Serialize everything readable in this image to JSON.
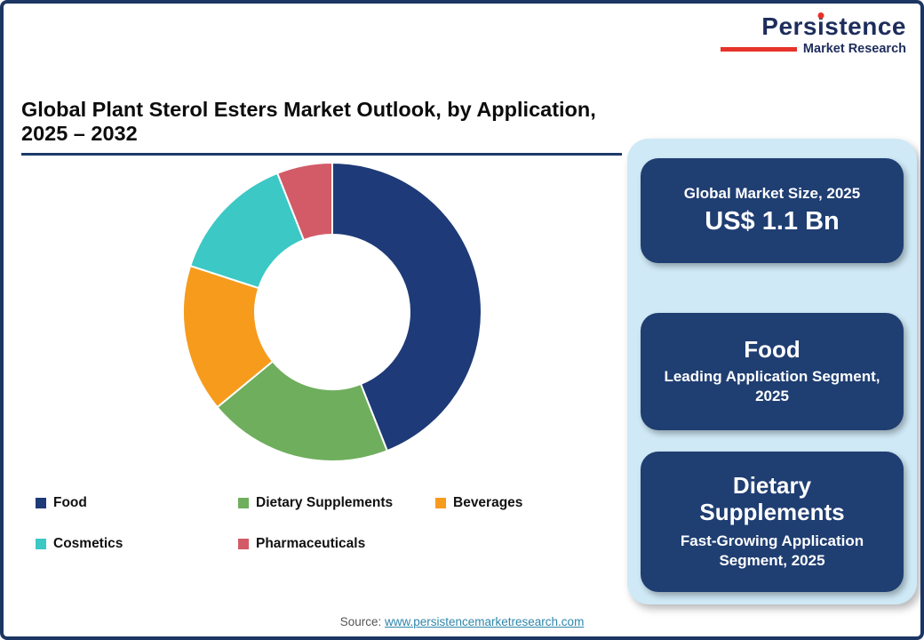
{
  "logo": {
    "part_pre": "Pers",
    "part_i": "i",
    "part_post": "stence",
    "subtitle": "Market Research",
    "brand_navy": "#1e2d5c",
    "brand_red": "#e63229"
  },
  "header": {
    "title": "Global Plant Sterol Esters Market Outlook, by Application, 2025 – 2032",
    "underline_color": "#1d3a6b"
  },
  "chart_data": {
    "type": "pie",
    "donut": true,
    "start_angle_deg": 0,
    "title": "Global Plant Sterol Esters Market Outlook, by Application, 2025 – 2032",
    "categories": [
      "Food",
      "Dietary Supplements",
      "Beverages",
      "Cosmetics",
      "Pharmaceuticals"
    ],
    "values": [
      44,
      20,
      16,
      14,
      6
    ],
    "unit": "percent_of_total_estimated_from_arc_angles",
    "colors": [
      "#1e3a78",
      "#6fae5d",
      "#f79b1d",
      "#3cc8c5",
      "#d25b67"
    ],
    "legend_position": "bottom",
    "inner_radius_ratio": 0.52
  },
  "side_panel": {
    "background": "#cfe9f6",
    "card_color": "#1f3e72",
    "cards": [
      {
        "line1": "Global Market Size, 2025",
        "line2": "US$ 1.1 Bn"
      },
      {
        "line1": "Food",
        "line2": "Leading Application Segment, 2025"
      },
      {
        "line1": "Dietary Supplements",
        "line2": "Fast-Growing Application Segment, 2025"
      }
    ]
  },
  "footer": {
    "source_label": "Source:",
    "source_link": "www.persistencemarketresearch.com"
  }
}
